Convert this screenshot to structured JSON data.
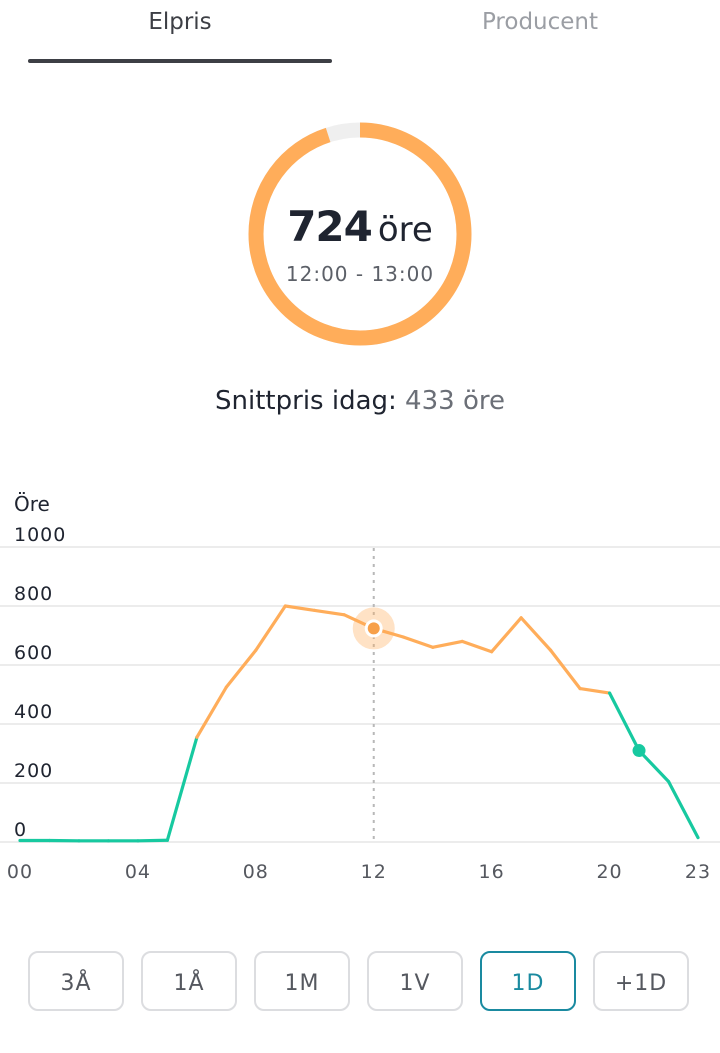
{
  "tabs": [
    {
      "label": "Elpris",
      "active": true
    },
    {
      "label": "Producent",
      "active": false
    }
  ],
  "current_price": {
    "value": "724",
    "unit": "öre",
    "time_range": "12:00 - 13:00",
    "gauge_fill_fraction": 0.95
  },
  "average": {
    "label": "Snittpris idag:",
    "value": "433 öre"
  },
  "chart_data": {
    "type": "line",
    "ylabel": "Öre",
    "ylim": [
      0,
      1000
    ],
    "yticks": [
      "0",
      "200",
      "400",
      "600",
      "800",
      "1000"
    ],
    "xlim": [
      0,
      23
    ],
    "xticks": [
      "00",
      "04",
      "08",
      "12",
      "16",
      "20",
      "23"
    ],
    "x": [
      0,
      1,
      2,
      3,
      4,
      5,
      6,
      7,
      8,
      9,
      10,
      11,
      12,
      13,
      14,
      15,
      16,
      17,
      18,
      19,
      20,
      21,
      22,
      23
    ],
    "values": [
      5,
      5,
      4,
      4,
      4,
      6,
      355,
      525,
      650,
      800,
      785,
      770,
      724,
      695,
      660,
      680,
      645,
      760,
      650,
      520,
      505,
      310,
      205,
      15
    ],
    "selected_x": 12,
    "marker_x": 21,
    "grid": true,
    "colors": {
      "high": "#ffad5a",
      "low": "#17c9a0",
      "grid": "#e6e6e6",
      "cursor": "#b8b8b8"
    }
  },
  "range_buttons": [
    {
      "label": "3Å",
      "selected": false
    },
    {
      "label": "1Å",
      "selected": false
    },
    {
      "label": "1M",
      "selected": false
    },
    {
      "label": "1V",
      "selected": false
    },
    {
      "label": "1D",
      "selected": true
    },
    {
      "label": "+1D",
      "selected": false
    }
  ]
}
